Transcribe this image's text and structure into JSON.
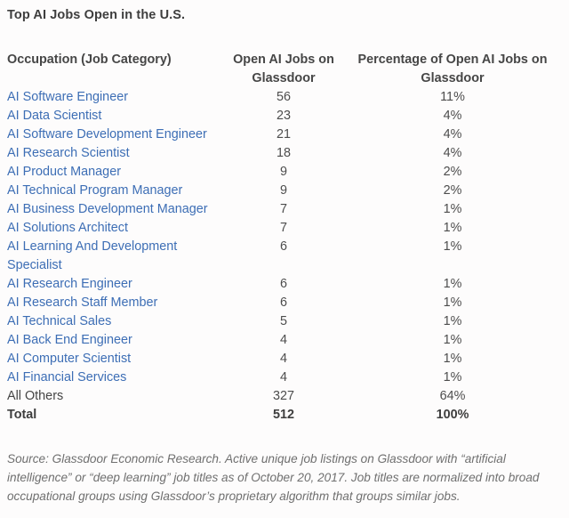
{
  "chart_data": {
    "type": "table",
    "title": "Top AI Jobs Open in the U.S.",
    "columns": [
      "Occupation (Job Category)",
      "Open AI Jobs on Glassdoor",
      "Percentage of Open AI Jobs on Glassdoor"
    ],
    "rows": [
      {
        "occupation": "AI Software Engineer",
        "open_jobs": "56",
        "percentage": "11%",
        "is_link": true,
        "is_bold": false
      },
      {
        "occupation": "AI Data Scientist",
        "open_jobs": "23",
        "percentage": "4%",
        "is_link": true,
        "is_bold": false
      },
      {
        "occupation": "AI Software Development Engineer",
        "open_jobs": "21",
        "percentage": "4%",
        "is_link": true,
        "is_bold": false
      },
      {
        "occupation": "AI Research Scientist",
        "open_jobs": "18",
        "percentage": "4%",
        "is_link": true,
        "is_bold": false
      },
      {
        "occupation": "AI Product Manager",
        "open_jobs": "9",
        "percentage": "2%",
        "is_link": true,
        "is_bold": false
      },
      {
        "occupation": "AI Technical Program Manager",
        "open_jobs": "9",
        "percentage": "2%",
        "is_link": true,
        "is_bold": false
      },
      {
        "occupation": "AI Business Development Manager",
        "open_jobs": "7",
        "percentage": "1%",
        "is_link": true,
        "is_bold": false
      },
      {
        "occupation": "AI Solutions Architect",
        "open_jobs": "7",
        "percentage": "1%",
        "is_link": true,
        "is_bold": false
      },
      {
        "occupation": "AI Learning And Development Specialist",
        "open_jobs": "6",
        "percentage": "1%",
        "is_link": true,
        "is_bold": false
      },
      {
        "occupation": "AI Research Engineer",
        "open_jobs": "6",
        "percentage": "1%",
        "is_link": true,
        "is_bold": false
      },
      {
        "occupation": "AI Research Staff Member",
        "open_jobs": "6",
        "percentage": "1%",
        "is_link": true,
        "is_bold": false
      },
      {
        "occupation": "AI Technical Sales",
        "open_jobs": "5",
        "percentage": "1%",
        "is_link": true,
        "is_bold": false
      },
      {
        "occupation": "AI Back End Engineer",
        "open_jobs": "4",
        "percentage": "1%",
        "is_link": true,
        "is_bold": false
      },
      {
        "occupation": "AI Computer Scientist",
        "open_jobs": "4",
        "percentage": "1%",
        "is_link": true,
        "is_bold": false
      },
      {
        "occupation": "AI Financial Services",
        "open_jobs": "4",
        "percentage": "1%",
        "is_link": true,
        "is_bold": false
      },
      {
        "occupation": "All Others",
        "open_jobs": "327",
        "percentage": "64%",
        "is_link": false,
        "is_bold": false
      },
      {
        "occupation": "Total",
        "open_jobs": "512",
        "percentage": "100%",
        "is_link": false,
        "is_bold": true
      }
    ],
    "source_note": "Source: Glassdoor Economic Research. Active unique job listings on Glassdoor with “artificial intelligence” or “deep learning” job titles as of October 20, 2017. Job titles are normalized into broad occupational groups using Glassdoor’s proprietary algorithm that groups similar jobs.",
    "layout": {
      "grid": false,
      "legend": "none",
      "value_columns_aligned": "center"
    }
  },
  "colors": {
    "link_blue": "#3d6eb5",
    "heading_text": "#464646",
    "body_text": "#4d4d4d",
    "footer_text": "#6f6f6f",
    "background": "#fdfcfc"
  }
}
